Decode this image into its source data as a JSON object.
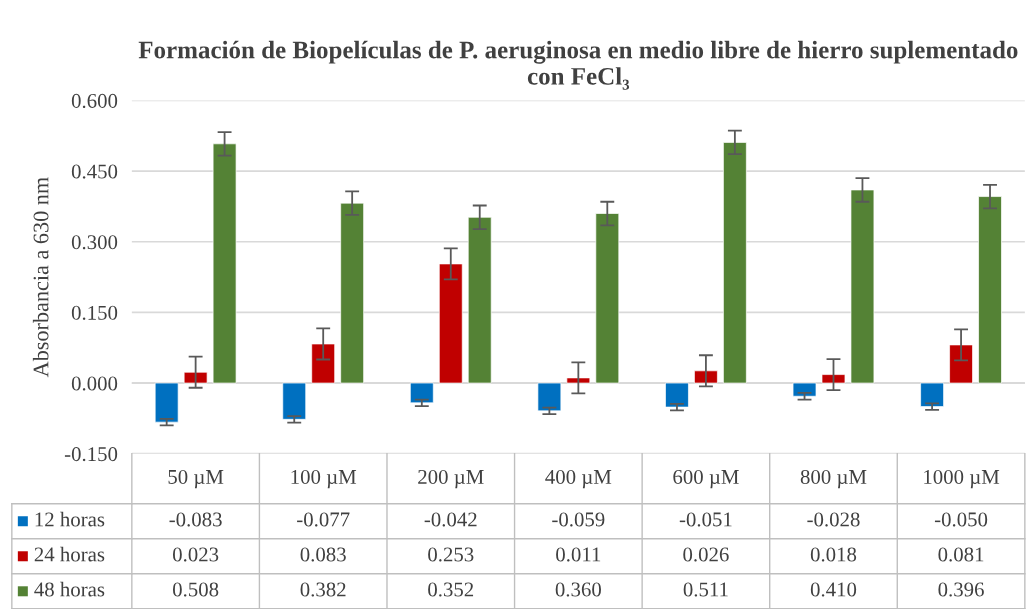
{
  "chart_data": {
    "type": "bar",
    "title": "Formación de Biopelículas de P. aeruginosa en medio libre de hierro suplementado con FeCl₃",
    "ylabel": "Absorbancia a 630 nm",
    "categories": [
      "50 µM",
      "100 µM",
      "200 µM",
      "400 µM",
      "600 µM",
      "800 µM",
      "1000 µM"
    ],
    "series": [
      {
        "name": "12 horas",
        "color": "#0070c0",
        "values": [
          -0.083,
          -0.077,
          -0.042,
          -0.059,
          -0.051,
          -0.028,
          -0.05
        ],
        "errors": [
          0.007,
          0.007,
          0.007,
          0.007,
          0.007,
          0.007,
          0.007
        ],
        "value_labels": [
          "-0.083",
          "-0.077",
          "-0.042",
          "-0.059",
          "-0.051",
          "-0.028",
          "-0.050"
        ]
      },
      {
        "name": "24 horas",
        "color": "#c00000",
        "values": [
          0.023,
          0.083,
          0.253,
          0.011,
          0.026,
          0.018,
          0.081
        ],
        "errors": [
          0.033,
          0.033,
          0.033,
          0.033,
          0.033,
          0.033,
          0.033
        ],
        "value_labels": [
          "0.023",
          "0.083",
          "0.253",
          "0.011",
          "0.026",
          "0.018",
          "0.081"
        ]
      },
      {
        "name": "48 horas",
        "color": "#548235",
        "values": [
          0.508,
          0.382,
          0.352,
          0.36,
          0.511,
          0.41,
          0.396
        ],
        "errors": [
          0.025,
          0.025,
          0.025,
          0.025,
          0.025,
          0.025,
          0.025
        ],
        "value_labels": [
          "0.508",
          "0.382",
          "0.352",
          "0.360",
          "0.511",
          "0.410",
          "0.396"
        ]
      }
    ],
    "ylim": [
      -0.15,
      0.6
    ],
    "yticks": [
      {
        "value": -0.15,
        "label": "-0.150"
      },
      {
        "value": 0,
        "label": "0.000"
      },
      {
        "value": 0.15,
        "label": "0.150"
      },
      {
        "value": 0.3,
        "label": "0.300"
      },
      {
        "value": 0.45,
        "label": "0.450"
      },
      {
        "value": 0.6,
        "label": "0.600"
      }
    ],
    "grid": "y",
    "legend": "bottom"
  }
}
